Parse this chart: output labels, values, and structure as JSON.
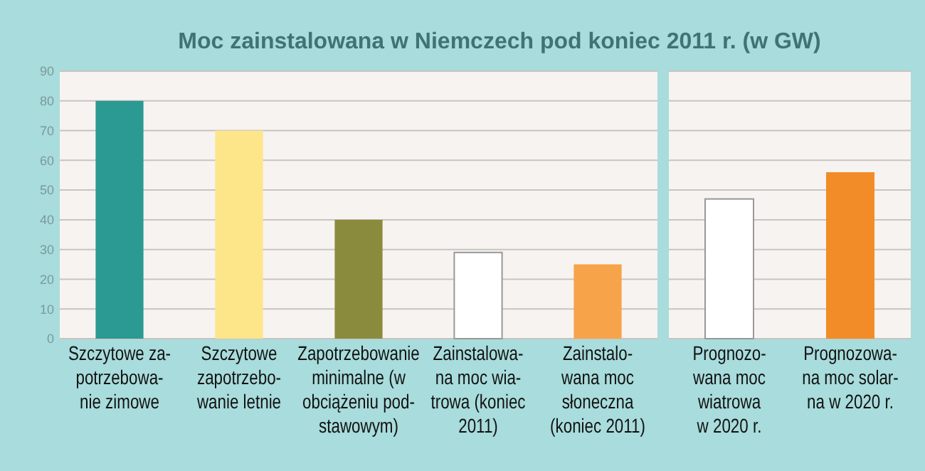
{
  "chart_data": [
    {
      "type": "bar",
      "title": "Moc zainstalowana w Niemczech pod koniec 2011 r. (w GW)",
      "categories": [
        "Szczytowe za-\npotrzebowa-\nnie zimowe",
        "Szczytowe\nzapotrzebo-\nwanie letnie",
        "Zapotrzebowanie\nminimalne (w\nobciążeniu pod-\nstawowym)",
        "Zainstalowa-\nna moc wia-\ntrowa (koniec\n2011)",
        "Zainstalo-\nwana moc\nsłoneczna\n(koniec 2011)"
      ],
      "values": [
        80,
        70,
        40,
        29,
        25
      ],
      "colors": [
        "#2a9a92",
        "#fde58a",
        "#8b8b3e",
        "#ffffff",
        "#f7a34a"
      ],
      "ylim": [
        0,
        90
      ],
      "yticks": [
        0,
        10,
        20,
        30,
        40,
        50,
        60,
        70,
        80,
        90
      ],
      "grid": "y"
    },
    {
      "type": "bar",
      "categories": [
        "Prognozo-\nwana moc\nwiatrowa\nw 2020 r.",
        "Prognozowa-\nna moc solar-\nna w 2020 r."
      ],
      "values": [
        47,
        56
      ],
      "colors": [
        "#ffffff",
        "#f28c28"
      ],
      "ylim": [
        0,
        90
      ],
      "yticks": [
        0,
        10,
        20,
        30,
        40,
        50,
        60,
        70,
        80,
        90
      ],
      "grid": "y",
      "tick_labels": "x"
    }
  ]
}
